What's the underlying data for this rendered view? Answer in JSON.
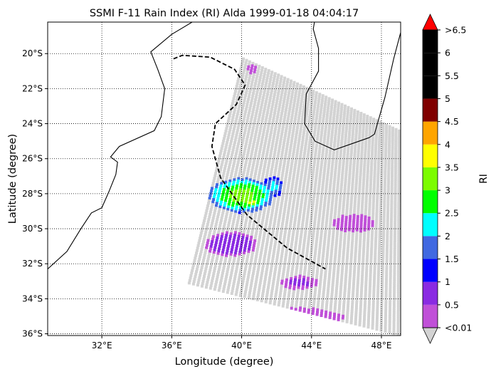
{
  "chart_data": {
    "type": "heatmap",
    "title": "SSMI F-11 Rain Index (RI) Alda 1999-01-18 04:04:17",
    "xlabel": "Longitude (degree)",
    "ylabel": "Latitude (degree)",
    "xlim": [
      28.9,
      49.1
    ],
    "ylim": [
      -36.1,
      -18.2
    ],
    "xticks": [
      {
        "value": 32,
        "label": "32°E"
      },
      {
        "value": 36,
        "label": "36°E"
      },
      {
        "value": 40,
        "label": "40°E"
      },
      {
        "value": 44,
        "label": "44°E"
      },
      {
        "value": 48,
        "label": "48°E"
      }
    ],
    "yticks": [
      {
        "value": -20,
        "label": "20°S"
      },
      {
        "value": -22,
        "label": "22°S"
      },
      {
        "value": -24,
        "label": "24°S"
      },
      {
        "value": -26,
        "label": "26°S"
      },
      {
        "value": -28,
        "label": "28°S"
      },
      {
        "value": -30,
        "label": "30°S"
      },
      {
        "value": -32,
        "label": "32°S"
      },
      {
        "value": -34,
        "label": "34°S"
      },
      {
        "value": -36,
        "label": "36°S"
      }
    ],
    "grid": true,
    "colorbar": {
      "label": "RI",
      "levels": [
        0.01,
        0.5,
        1,
        1.5,
        2,
        2.5,
        3,
        3.5,
        4,
        4.5,
        5,
        5.5,
        6,
        6.5
      ],
      "tick_labels": [
        "<0.01",
        "0.5",
        "1",
        "1.5",
        "2",
        "2.5",
        "3",
        "3.5",
        "4",
        "4.5",
        "5",
        "5.5",
        "6",
        ">6.5"
      ],
      "colors": [
        "#c050d8",
        "#8a2be2",
        "#0000ff",
        "#4169e1",
        "#00ffff",
        "#00ff00",
        "#7cfc00",
        "#ffff00",
        "#ffa500",
        "#800000",
        "#000000",
        "#000000",
        "#000000"
      ],
      "under_color": "#d3d3d3",
      "over_color": "#ff0000"
    },
    "swath": {
      "corners": [
        [
          40.1,
          -20.3
        ],
        [
          49.2,
          -24.5
        ],
        [
          49.2,
          -36.1
        ],
        [
          37.0,
          -33.1
        ]
      ],
      "background_value": 0
    },
    "rain_areas": [
      {
        "lon": 40.0,
        "lat": -28.1,
        "rx": 1.9,
        "ry": 1.0,
        "value": 3.3
      },
      {
        "lon": 39.0,
        "lat": -27.9,
        "rx": 0.6,
        "ry": 0.6,
        "value": 2.2
      },
      {
        "lon": 41.8,
        "lat": -27.6,
        "rx": 0.6,
        "ry": 0.6,
        "value": 2.2
      },
      {
        "lon": 40.6,
        "lat": -28.5,
        "rx": 0.5,
        "ry": 0.3,
        "value": 3.7
      },
      {
        "lon": 38.8,
        "lat": -27.1,
        "rx": 0.1,
        "ry": 0.1,
        "value": 4.7
      },
      {
        "lon": 39.4,
        "lat": -30.9,
        "rx": 1.5,
        "ry": 0.7,
        "value": 0.8
      },
      {
        "lon": 43.3,
        "lat": -33.1,
        "rx": 1.1,
        "ry": 0.4,
        "value": 0.6
      },
      {
        "lon": 46.4,
        "lat": -29.7,
        "rx": 1.2,
        "ry": 0.5,
        "value": 0.5
      },
      {
        "lon": 42.6,
        "lat": -35.1,
        "rx": 3.3,
        "ry": 0.6,
        "value": 0.6
      },
      {
        "lon": 40.6,
        "lat": -20.9,
        "rx": 0.3,
        "ry": 0.3,
        "value": 0.5
      }
    ],
    "storm_track": [
      [
        36.1,
        -20.3
      ],
      [
        36.6,
        -20.1
      ],
      [
        38.2,
        -20.2
      ],
      [
        39.6,
        -20.9
      ],
      [
        40.2,
        -21.8
      ],
      [
        39.7,
        -22.9
      ],
      [
        38.5,
        -24.0
      ],
      [
        38.3,
        -25.3
      ],
      [
        38.8,
        -27.1
      ],
      [
        40.3,
        -29.2
      ],
      [
        42.6,
        -31.1
      ],
      [
        44.8,
        -32.3
      ]
    ],
    "coastlines": [
      [
        [
          28.9,
          -32.3
        ],
        [
          30.0,
          -31.3
        ],
        [
          30.8,
          -30.0
        ],
        [
          31.4,
          -29.1
        ],
        [
          32.0,
          -28.8
        ],
        [
          32.4,
          -27.9
        ],
        [
          32.8,
          -26.9
        ],
        [
          32.9,
          -26.2
        ],
        [
          32.5,
          -25.9
        ],
        [
          33.0,
          -25.3
        ],
        [
          35.0,
          -24.4
        ],
        [
          35.4,
          -23.6
        ],
        [
          35.6,
          -22.0
        ],
        [
          35.2,
          -20.9
        ],
        [
          34.8,
          -19.9
        ],
        [
          36.0,
          -18.9
        ],
        [
          37.5,
          -18.0
        ],
        [
          38.0,
          -17.7
        ]
      ],
      [
        [
          47.3,
          -24.8
        ],
        [
          45.3,
          -25.5
        ],
        [
          44.2,
          -25.0
        ],
        [
          43.6,
          -24.0
        ],
        [
          43.7,
          -22.3
        ],
        [
          44.4,
          -21.0
        ],
        [
          44.4,
          -19.7
        ],
        [
          44.1,
          -18.6
        ],
        [
          44.2,
          -18.0
        ]
      ],
      [
        [
          49.1,
          -18.8
        ],
        [
          48.7,
          -20.3
        ],
        [
          48.2,
          -22.5
        ],
        [
          47.6,
          -24.6
        ],
        [
          47.3,
          -24.8
        ]
      ]
    ]
  }
}
